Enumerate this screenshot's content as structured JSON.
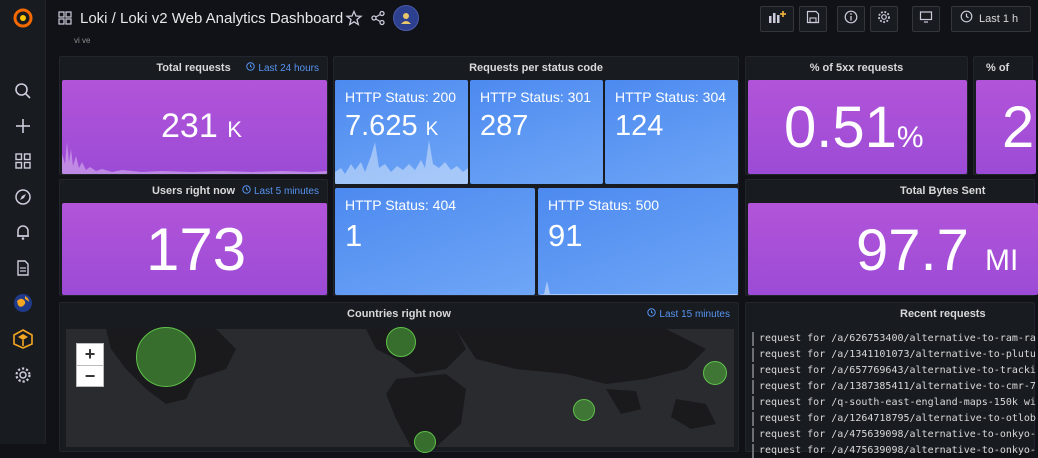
{
  "dashboard": {
    "title": "Loki / Loki v2 Web Analytics Dashboard",
    "time_range": "Last 1 h",
    "row_hint": "vi ve"
  },
  "panels": {
    "total_requests": {
      "title": "Total requests",
      "tag": "Last 24 hours",
      "value": "231",
      "unit": "K"
    },
    "status_codes": {
      "title": "Requests per status code",
      "cells": [
        {
          "label": "HTTP Status: 200",
          "value": "7.625",
          "unit": "K"
        },
        {
          "label": "HTTP Status: 301",
          "value": "287",
          "unit": ""
        },
        {
          "label": "HTTP Status: 304",
          "value": "124",
          "unit": ""
        },
        {
          "label": "HTTP Status: 404",
          "value": "1",
          "unit": ""
        },
        {
          "label": "HTTP Status: 500",
          "value": "91",
          "unit": ""
        }
      ]
    },
    "pct_5xx": {
      "title": "% of 5xx requests",
      "value": "0.51",
      "unit": "%"
    },
    "pct_partial": {
      "title": "% of",
      "value": "2"
    },
    "users_now": {
      "title": "Users right now",
      "tag": "Last 5 minutes",
      "value": "173"
    },
    "bytes_sent": {
      "title": "Total Bytes Sent",
      "value": "97.7",
      "unit": "MI"
    },
    "countries": {
      "title": "Countries right now",
      "tag": "Last 15 minutes",
      "zoom_in": "+",
      "zoom_out": "−"
    },
    "recent_requests": {
      "title": "Recent requests",
      "lines": [
        "request for /a/626753400/alternative-to-ram-ra",
        "request for /a/1341101073/alternative-to-plutu",
        "request for /a/657769643/alternative-to-tracki",
        "request for /a/1387385411/alternative-to-cmr-7",
        "request for /q-south-east-england-maps-150k wi",
        "request for /a/1264718795/alternative-to-otlob",
        "request for /a/475639098/alternative-to-onkyo-",
        "request for /a/475639098/alternative-to-onkyo-"
      ]
    }
  },
  "colors": {
    "stat_purple": "#b254d9",
    "stat_blue": "#5794f2",
    "tag_blue": "#5794f2",
    "bubble_green": "#5fc24a"
  },
  "icons": [
    "grafana-logo-icon",
    "search-icon",
    "plus-icon",
    "dashboards-icon",
    "explore-icon",
    "alerting-icon",
    "document-icon",
    "globe-icon",
    "plugin-icon",
    "gear-icon",
    "grid-icon",
    "star-icon",
    "share-icon",
    "avatar-icon",
    "add-panel-icon",
    "save-icon",
    "info-icon",
    "settings-icon",
    "tv-icon",
    "clock-icon"
  ]
}
